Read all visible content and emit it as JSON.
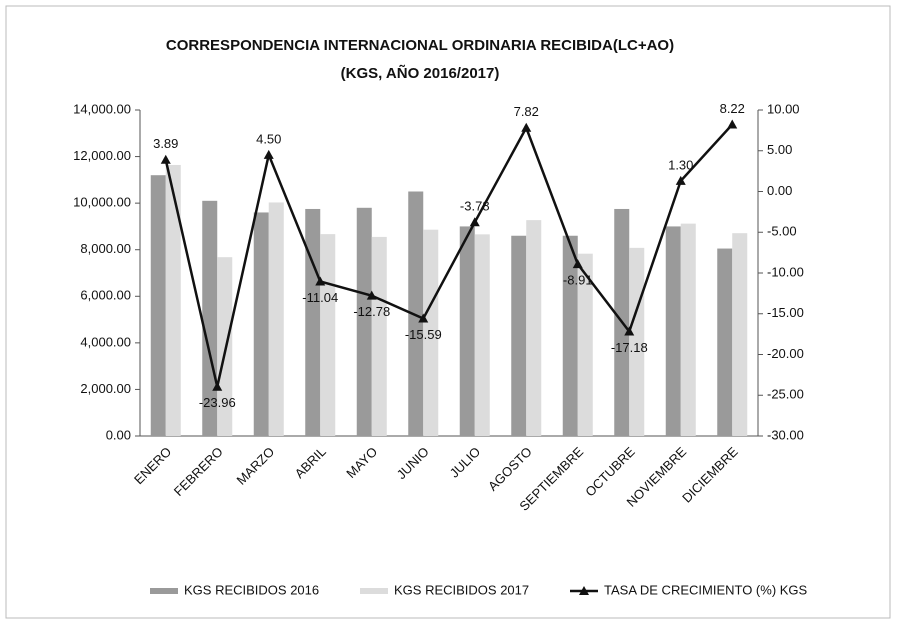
{
  "chart_data": {
    "type": "bar-line",
    "title": "CORRESPONDENCIA INTERNACIONAL ORDINARIA RECIBIDA(LC+AO)",
    "subtitle": "(KGS, AÑO 2016/2017)",
    "categories": [
      "ENERO",
      "FEBRERO",
      "MARZO",
      "ABRIL",
      "MAYO",
      "JUNIO",
      "JULIO",
      "AGOSTO",
      "SEPTIEMBRE",
      "OCTUBRE",
      "NOVIEMBRE",
      "DICIEMBRE"
    ],
    "series": [
      {
        "name": "KGS RECIBIDOS 2016",
        "type": "bar",
        "color": "#9a9a9a",
        "values": [
          11200,
          10100,
          9600,
          9750,
          9800,
          10500,
          9000,
          8600,
          8600,
          9750,
          9000,
          8050
        ]
      },
      {
        "name": "KGS RECIBIDOS 2017",
        "type": "bar",
        "color": "#dcdcdc",
        "values": [
          11640,
          7680,
          10030,
          8670,
          8550,
          8860,
          8660,
          9270,
          7830,
          8080,
          9120,
          8710
        ]
      },
      {
        "name": "TASA DE CRECIMIENTO (%) KGS",
        "type": "line",
        "axis": "y2",
        "color": "#111111",
        "values": [
          3.89,
          -23.96,
          4.5,
          -11.04,
          -12.78,
          -15.59,
          -3.78,
          7.82,
          -8.91,
          -17.18,
          1.3,
          8.22
        ],
        "value_labels": [
          "3.89",
          "-23.96",
          "4.50",
          "-11.04",
          "-12.78",
          "-15.59",
          "-3.78",
          "7.82",
          "-8.91",
          "-17.18",
          "1.30",
          "8.22"
        ]
      }
    ],
    "ylim": [
      0,
      14000
    ],
    "yticks": [
      {
        "value": 0,
        "label": "0.00"
      },
      {
        "value": 2000,
        "label": "2,000.00"
      },
      {
        "value": 4000,
        "label": "4,000.00"
      },
      {
        "value": 6000,
        "label": "6,000.00"
      },
      {
        "value": 8000,
        "label": "8,000.00"
      },
      {
        "value": 10000,
        "label": "10,000.00"
      },
      {
        "value": 12000,
        "label": "12,000.00"
      },
      {
        "value": 14000,
        "label": "14,000.00"
      }
    ],
    "y2lim": [
      -30,
      10
    ],
    "y2ticks": [
      {
        "value": -30,
        "label": "-30.00"
      },
      {
        "value": -25,
        "label": "-25.00"
      },
      {
        "value": -20,
        "label": "-20.00"
      },
      {
        "value": -15,
        "label": "-15.00"
      },
      {
        "value": -10,
        "label": "-10.00"
      },
      {
        "value": -5,
        "label": "-5.00"
      },
      {
        "value": 0,
        "label": "0.00"
      },
      {
        "value": 5,
        "label": "5.00"
      },
      {
        "value": 10,
        "label": "10.00"
      }
    ],
    "legend": "bottom"
  }
}
